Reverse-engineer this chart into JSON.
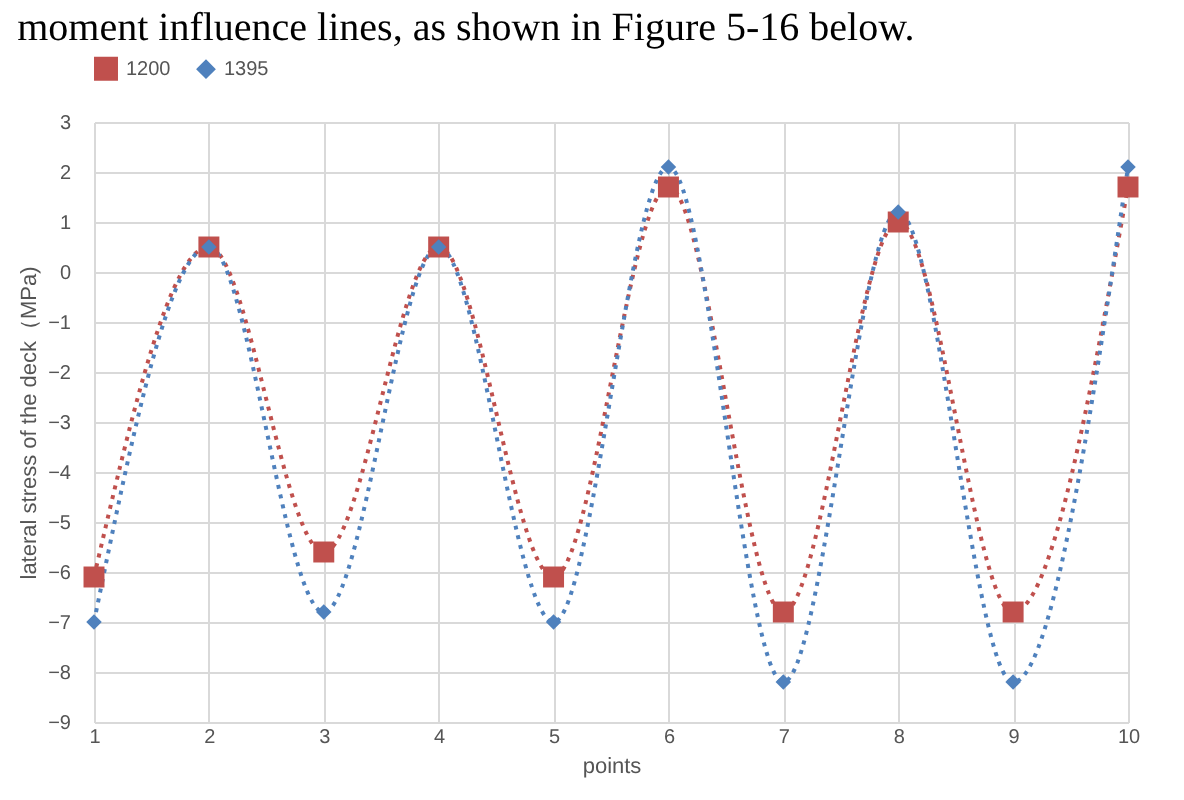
{
  "chart_data": {
    "type": "line",
    "annotations": [
      "moment influence lines, as shown in Figure 5-16 below."
    ],
    "xlabel": "points",
    "ylabel": "lateral stress of the deck（MPa)",
    "categories": [
      "1",
      "2",
      "3",
      "4",
      "5",
      "6",
      "7",
      "8",
      "9",
      "10"
    ],
    "series": [
      {
        "name": "1200",
        "color": "#c0504d",
        "marker": "square",
        "values": [
          -6.1,
          0.5,
          -5.6,
          0.5,
          -6.1,
          1.7,
          -6.8,
          1.0,
          -6.8,
          1.7
        ]
      },
      {
        "name": "1395",
        "color": "#4f81bd",
        "marker": "diamond",
        "values": [
          -7.0,
          0.5,
          -6.8,
          0.5,
          -7.0,
          2.1,
          -8.2,
          1.2,
          -8.2,
          2.1
        ]
      }
    ],
    "ylim": [
      -9,
      3
    ],
    "yticks": [
      -9,
      -8,
      -7,
      -6,
      -5,
      -4,
      -3,
      -2,
      -1,
      0,
      1,
      2,
      3
    ],
    "grid": true,
    "legend": "top",
    "line_style": "dotted"
  }
}
